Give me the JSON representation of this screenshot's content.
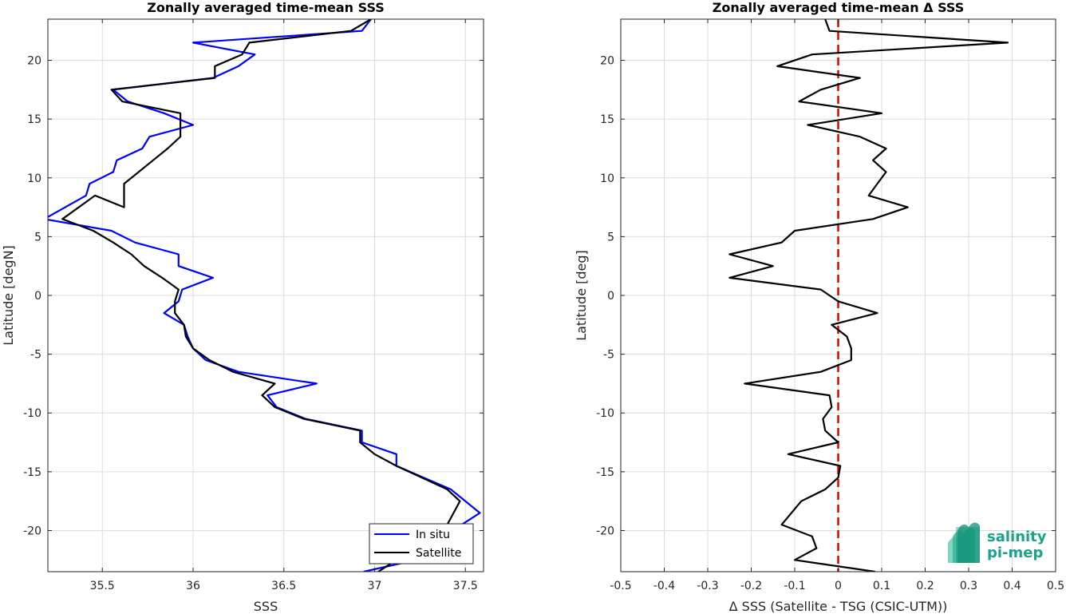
{
  "chart_data": [
    {
      "type": "line",
      "title": "Zonally averaged time-mean SSS",
      "xlabel": "SSS",
      "ylabel": "Latitude [degN]",
      "xlim": [
        35.2,
        37.6
      ],
      "ylim": [
        -23.5,
        23.5
      ],
      "xticks": [
        35.5,
        36,
        36.5,
        37,
        37.5
      ],
      "xtick_labels": [
        "35.5",
        "36",
        "36.5",
        "37",
        "37.5"
      ],
      "yticks": [
        -20,
        -15,
        -10,
        -5,
        0,
        5,
        10,
        15,
        20
      ],
      "ytick_labels": [
        "-20",
        "-15",
        "-10",
        "-5",
        "0",
        "5",
        "10",
        "15",
        "20"
      ],
      "grid": true,
      "legend_position": "bottom-right",
      "series": [
        {
          "name": "In situ",
          "color": "#0000ff",
          "x": [
            36.98,
            36.93,
            36.0,
            36.34,
            36.25,
            36.11,
            35.56,
            35.64,
            35.84,
            36.0,
            35.76,
            35.72,
            35.58,
            35.56,
            35.43,
            35.41,
            35.18,
            35.55,
            35.68,
            35.92,
            35.92,
            36.11,
            35.94,
            35.92,
            35.84,
            35.95,
            35.97,
            36.0,
            36.07,
            36.25,
            36.68,
            36.41,
            36.46,
            36.62,
            36.93,
            36.93,
            37.12,
            37.12,
            37.42,
            37.58,
            37.48,
            37.38,
            37.23,
            36.94
          ],
          "y": [
            23.5,
            22.5,
            21.5,
            20.5,
            19.5,
            18.5,
            17.5,
            16.5,
            15.5,
            14.5,
            13.5,
            12.5,
            11.5,
            10.5,
            9.5,
            8.5,
            6.5,
            5.5,
            4.5,
            3.5,
            2.5,
            1.5,
            0.5,
            -0.5,
            -1.5,
            -2.5,
            -3.5,
            -4.5,
            -5.5,
            -6.5,
            -7.5,
            -8.5,
            -9.5,
            -10.5,
            -11.5,
            -12.5,
            -13.5,
            -14.5,
            -16.5,
            -18.5,
            -19.5,
            -20.5,
            -22.5,
            -23.5
          ]
        },
        {
          "name": "Satellite",
          "color": "#000000",
          "x": [
            36.98,
            36.87,
            36.31,
            36.27,
            36.12,
            36.12,
            35.55,
            35.61,
            35.93,
            35.93,
            35.86,
            35.78,
            35.7,
            35.62,
            35.62,
            35.46,
            35.28,
            35.45,
            35.56,
            35.66,
            35.73,
            35.83,
            35.92,
            35.9,
            35.9,
            35.95,
            35.96,
            36.0,
            36.09,
            36.22,
            36.45,
            36.38,
            36.45,
            36.61,
            36.92,
            36.92,
            37.0,
            37.12,
            37.4,
            37.47,
            37.4,
            37.21,
            37.12,
            37.02
          ],
          "y": [
            23.5,
            22.5,
            21.5,
            20.5,
            19.5,
            18.5,
            17.5,
            16.5,
            15.5,
            13.5,
            12.5,
            11.5,
            10.5,
            9.5,
            7.5,
            8.5,
            6.5,
            5.5,
            4.5,
            3.5,
            2.5,
            1.5,
            0.5,
            -0.5,
            -1.5,
            -2.5,
            -3.5,
            -4.5,
            -5.5,
            -6.5,
            -7.5,
            -8.5,
            -9.5,
            -10.5,
            -11.5,
            -12.5,
            -13.5,
            -14.5,
            -16.5,
            -17.5,
            -19.5,
            -20.5,
            -22.5,
            -23.5
          ]
        }
      ]
    },
    {
      "type": "line",
      "title": "Zonally averaged time-mean Δ SSS",
      "xlabel": "Δ SSS (Satellite - TSG (CSIC-UTM))",
      "ylabel": "Latitude [deg]",
      "xlim": [
        -0.5,
        0.5
      ],
      "ylim": [
        -23.5,
        23.5
      ],
      "xticks": [
        -0.5,
        -0.4,
        -0.3,
        -0.2,
        -0.1,
        0,
        0.1,
        0.2,
        0.3,
        0.4,
        0.5
      ],
      "xtick_labels": [
        "-0.5",
        "-0.4",
        "-0.3",
        "-0.2",
        "-0.1",
        "0",
        "0.1",
        "0.2",
        "0.3",
        "0.4",
        "0.5"
      ],
      "yticks": [
        -20,
        -15,
        -10,
        -5,
        0,
        5,
        10,
        15,
        20
      ],
      "ytick_labels": [
        "-20",
        "-15",
        "-10",
        "-5",
        "0",
        "5",
        "10",
        "15",
        "20"
      ],
      "grid": true,
      "zero_line": {
        "x": 0,
        "color": "#dd0000",
        "style": "dashed"
      },
      "series": [
        {
          "color": "#000000",
          "x": [
            -0.03,
            -0.02,
            0.39,
            -0.06,
            -0.14,
            0.05,
            -0.04,
            -0.09,
            0.1,
            -0.07,
            0.05,
            0.11,
            0.08,
            0.11,
            0.09,
            0.07,
            0.16,
            0.08,
            -0.1,
            -0.13,
            -0.25,
            -0.15,
            -0.25,
            -0.04,
            0.0,
            0.09,
            -0.015,
            0.02,
            0.03,
            0.03,
            -0.04,
            -0.215,
            -0.02,
            -0.015,
            -0.035,
            -0.03,
            0.0,
            -0.115,
            0.005,
            0.0,
            -0.03,
            -0.085,
            -0.13,
            -0.06,
            -0.05,
            -0.1,
            0.085
          ],
          "y": [
            23.5,
            22.5,
            21.5,
            20.5,
            19.5,
            18.5,
            17.5,
            16.5,
            15.5,
            14.5,
            13.5,
            12.5,
            11.5,
            10.5,
            9.5,
            8.5,
            7.5,
            6.5,
            5.5,
            4.5,
            3.5,
            2.5,
            1.5,
            0.5,
            -0.5,
            -1.5,
            -2.5,
            -3.5,
            -4.5,
            -5.5,
            -6.5,
            -7.5,
            -8.5,
            -9.5,
            -10.5,
            -11.5,
            -12.5,
            -13.5,
            -14.5,
            -15.5,
            -16.5,
            -17.5,
            -19.5,
            -20.5,
            -21.5,
            -22.5,
            -23.5
          ]
        }
      ]
    }
  ],
  "legend": {
    "in_situ_label": "In situ",
    "satellite_label": "Satellite"
  },
  "logo": {
    "line1": "salinity",
    "line2": "pi-mep"
  }
}
